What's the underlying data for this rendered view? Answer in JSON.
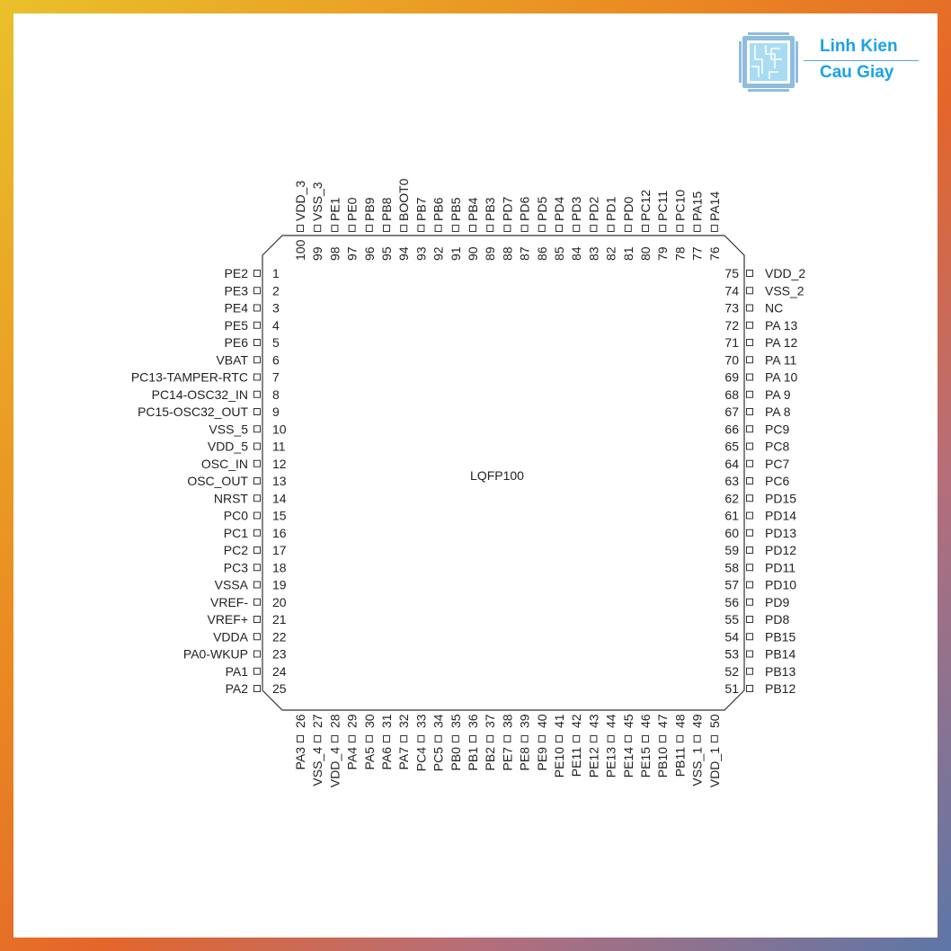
{
  "logo": {
    "line1": "Linh Kien",
    "line2": "Cau Giay",
    "color": "#1aa3e8"
  },
  "package": "LQFP100",
  "pins": {
    "left": [
      [
        "1",
        "PE2"
      ],
      [
        "2",
        "PE3"
      ],
      [
        "3",
        "PE4"
      ],
      [
        "4",
        "PE5"
      ],
      [
        "5",
        "PE6"
      ],
      [
        "6",
        "VBAT"
      ],
      [
        "7",
        "PC13-TAMPER-RTC"
      ],
      [
        "8",
        "PC14-OSC32_IN"
      ],
      [
        "9",
        "PC15-OSC32_OUT"
      ],
      [
        "10",
        "VSS_5"
      ],
      [
        "11",
        "VDD_5"
      ],
      [
        "12",
        "OSC_IN"
      ],
      [
        "13",
        "OSC_OUT"
      ],
      [
        "14",
        "NRST"
      ],
      [
        "15",
        "PC0"
      ],
      [
        "16",
        "PC1"
      ],
      [
        "17",
        "PC2"
      ],
      [
        "18",
        "PC3"
      ],
      [
        "19",
        "VSSA"
      ],
      [
        "20",
        "VREF-"
      ],
      [
        "21",
        "VREF+"
      ],
      [
        "22",
        "VDDA"
      ],
      [
        "23",
        "PA0-WKUP"
      ],
      [
        "24",
        "PA1"
      ],
      [
        "25",
        "PA2"
      ]
    ],
    "bottom": [
      [
        "26",
        "PA3"
      ],
      [
        "27",
        "VSS_4"
      ],
      [
        "28",
        "VDD_4"
      ],
      [
        "29",
        "PA4"
      ],
      [
        "30",
        "PA5"
      ],
      [
        "31",
        "PA6"
      ],
      [
        "32",
        "PA7"
      ],
      [
        "33",
        "PC4"
      ],
      [
        "34",
        "PC5"
      ],
      [
        "35",
        "PB0"
      ],
      [
        "36",
        "PB1"
      ],
      [
        "37",
        "PB2"
      ],
      [
        "38",
        "PE7"
      ],
      [
        "39",
        "PE8"
      ],
      [
        "40",
        "PE9"
      ],
      [
        "41",
        "PE10"
      ],
      [
        "42",
        "PE11"
      ],
      [
        "43",
        "PE12"
      ],
      [
        "44",
        "PE13"
      ],
      [
        "45",
        "PE14"
      ],
      [
        "46",
        "PE15"
      ],
      [
        "47",
        "PB10"
      ],
      [
        "48",
        "PB11"
      ],
      [
        "49",
        "VSS_1"
      ],
      [
        "50",
        "VDD_1"
      ]
    ],
    "right": [
      [
        "75",
        "VDD_2"
      ],
      [
        "74",
        "VSS_2"
      ],
      [
        "73",
        "NC"
      ],
      [
        "72",
        "PA 13"
      ],
      [
        "71",
        "PA 12"
      ],
      [
        "70",
        "PA 11"
      ],
      [
        "69",
        "PA 10"
      ],
      [
        "68",
        "PA 9"
      ],
      [
        "67",
        "PA 8"
      ],
      [
        "66",
        "PC9"
      ],
      [
        "65",
        "PC8"
      ],
      [
        "64",
        "PC7"
      ],
      [
        "63",
        "PC6"
      ],
      [
        "62",
        "PD15"
      ],
      [
        "61",
        "PD14"
      ],
      [
        "60",
        "PD13"
      ],
      [
        "59",
        "PD12"
      ],
      [
        "58",
        "PD11"
      ],
      [
        "57",
        "PD10"
      ],
      [
        "56",
        "PD9"
      ],
      [
        "55",
        "PD8"
      ],
      [
        "54",
        "PB15"
      ],
      [
        "53",
        "PB14"
      ],
      [
        "52",
        "PB13"
      ],
      [
        "51",
        "PB12"
      ]
    ],
    "top": [
      [
        "100",
        "VDD_3"
      ],
      [
        "99",
        "VSS_3"
      ],
      [
        "98",
        "PE1"
      ],
      [
        "97",
        "PE0"
      ],
      [
        "96",
        "PB9"
      ],
      [
        "95",
        "PB8"
      ],
      [
        "94",
        "BOOT0"
      ],
      [
        "93",
        "PB7"
      ],
      [
        "92",
        "PB6"
      ],
      [
        "91",
        "PB5"
      ],
      [
        "90",
        "PB4"
      ],
      [
        "89",
        "PB3"
      ],
      [
        "88",
        "PD7"
      ],
      [
        "87",
        "PD6"
      ],
      [
        "86",
        "PD5"
      ],
      [
        "85",
        "PD4"
      ],
      [
        "84",
        "PD3"
      ],
      [
        "83",
        "PD2"
      ],
      [
        "82",
        "PD1"
      ],
      [
        "81",
        "PD0"
      ],
      [
        "80",
        "PC12"
      ],
      [
        "79",
        "PC11"
      ],
      [
        "78",
        "PC10"
      ],
      [
        "77",
        "PA15"
      ],
      [
        "76",
        "PA14"
      ]
    ]
  }
}
